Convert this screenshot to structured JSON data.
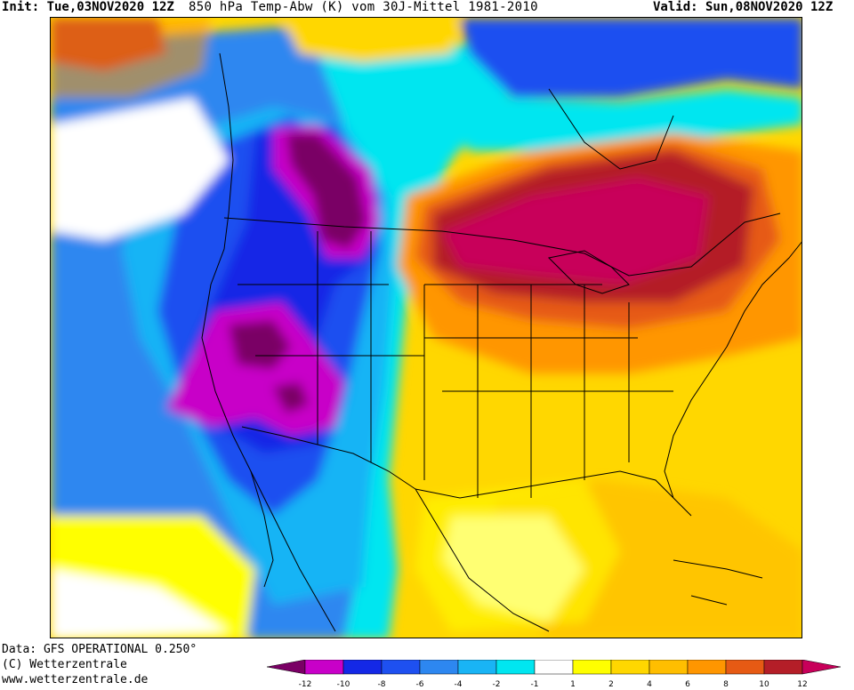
{
  "header": {
    "init": "Init: Tue,03NOV2020 12Z",
    "title": "850 hPa Temp-Abw (K) vom 30J-Mittel 1981-2010",
    "valid": "Valid: Sun,08NOV2020 12Z"
  },
  "footer": {
    "data_source": "Data: GFS OPERATIONAL 0.250°",
    "copyright": "(C) Wetterzentrale",
    "website": "www.wetterzentrale.de"
  },
  "colorbar": {
    "unit": "K",
    "bins": [
      {
        "from": -14,
        "to": -12,
        "color": "#7a0065"
      },
      {
        "from": -12,
        "to": -10,
        "color": "#c800c8"
      },
      {
        "from": -10,
        "to": -8,
        "color": "#1428e6"
      },
      {
        "from": -8,
        "to": -6,
        "color": "#1e50f0"
      },
      {
        "from": -6,
        "to": -4,
        "color": "#2d87f0"
      },
      {
        "from": -4,
        "to": -2,
        "color": "#19b4f5"
      },
      {
        "from": -2,
        "to": -1,
        "color": "#00e6f0"
      },
      {
        "from": -1,
        "to": 1,
        "color": "#ffffff"
      },
      {
        "from": 1,
        "to": 2,
        "color": "#ffff00"
      },
      {
        "from": 2,
        "to": 4,
        "color": "#ffd700"
      },
      {
        "from": 4,
        "to": 6,
        "color": "#ffbe00"
      },
      {
        "from": 6,
        "to": 8,
        "color": "#ff9600"
      },
      {
        "from": 8,
        "to": 10,
        "color": "#e65a14"
      },
      {
        "from": 10,
        "to": 12,
        "color": "#b41e28"
      },
      {
        "from": 12,
        "to": 14,
        "color": "#c8005a"
      }
    ],
    "tick_labels": [
      "-12",
      "-10",
      "-8",
      "-6",
      "-4",
      "-2",
      "-1",
      "1",
      "2",
      "4",
      "6",
      "8",
      "10",
      "12"
    ]
  },
  "map": {
    "palette": {
      "deep_purple": "#7a0065",
      "magenta": "#c800c8",
      "dark_blue": "#1428e6",
      "blue": "#1e50f0",
      "mid_blue": "#2d87f0",
      "light_blue": "#19b4f5",
      "cyan": "#00e6f0",
      "yellow": "#ffff00",
      "gold": "#ffd700",
      "amber": "#ffbe00",
      "orange": "#ff9600",
      "dark_orange": "#e65a14",
      "red": "#b41e28",
      "crimson": "#c8005a"
    }
  }
}
